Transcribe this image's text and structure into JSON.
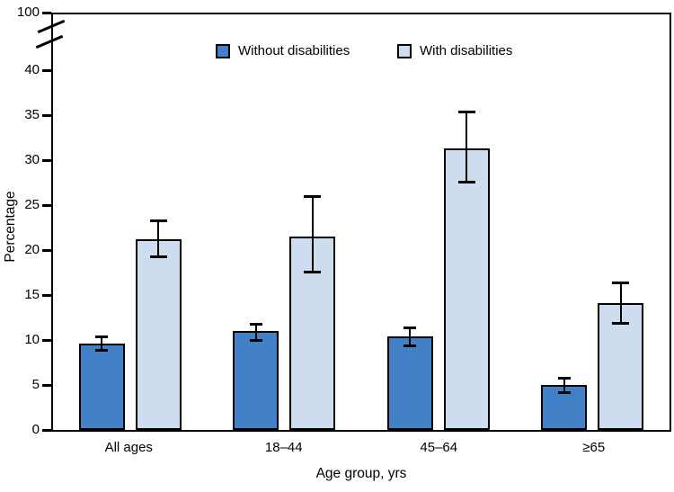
{
  "figure": {
    "y_axis_title": "Percentage",
    "x_axis_title": "Age group, yrs"
  },
  "legend": {
    "items": [
      {
        "label": "Without disabilities",
        "color": "#4281C7"
      },
      {
        "label": "With disabilities",
        "color": "#CEDCF0"
      }
    ]
  },
  "chart_data": {
    "type": "bar",
    "title": "",
    "xlabel": "Age group, yrs",
    "ylabel": "Percentage",
    "categories": [
      "All ages",
      "18–44",
      "45–64",
      "≥65"
    ],
    "series": [
      {
        "name": "Without disabilities",
        "color": "#4281C7",
        "values": [
          9.6,
          11.0,
          10.4,
          5.0
        ],
        "ci_low": [
          9.0,
          10.1,
          9.5,
          4.3
        ],
        "ci_high": [
          10.2,
          11.6,
          11.2,
          5.6
        ]
      },
      {
        "name": "With disabilities",
        "color": "#CEDCF0",
        "values": [
          21.2,
          21.5,
          31.3,
          14.1
        ],
        "ci_low": [
          19.4,
          17.7,
          27.7,
          12.0
        ],
        "ci_high": [
          23.1,
          25.8,
          35.2,
          16.2
        ]
      }
    ],
    "error_bars": true,
    "y_ticks": [
      0,
      5,
      10,
      15,
      20,
      25,
      30,
      35,
      40,
      100
    ],
    "axis_break": {
      "between": [
        40,
        100
      ]
    },
    "ylim": [
      0,
      100
    ],
    "grid": false,
    "legend_position": "top-center",
    "colors": {
      "axis": "#000000",
      "background": "#FFFFFF"
    }
  }
}
